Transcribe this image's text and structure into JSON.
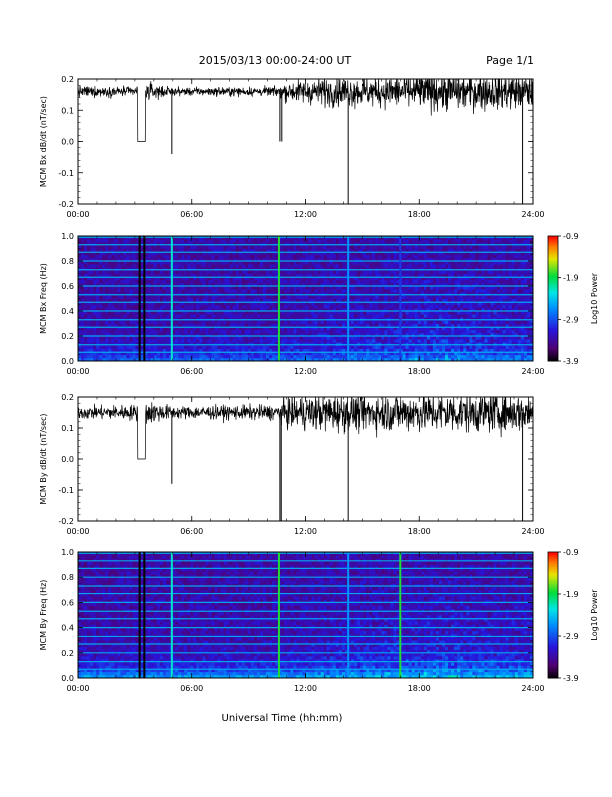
{
  "header": {
    "title": "2015/03/13  00:00-24:00 UT",
    "page": "Page 1/1"
  },
  "footer": {
    "xlabel": "Universal Time (hh:mm)"
  },
  "colorbar": {
    "ticks": [
      "-0.9",
      "-1.9",
      "-2.9",
      "-3.9"
    ],
    "tick_values": [
      -0.9,
      -1.9,
      -2.9,
      -3.9
    ],
    "label": "Log10 Power",
    "range": [
      -3.9,
      -0.9
    ]
  },
  "chart_data": [
    {
      "type": "line",
      "ylabel": "MCM Bx dB/dt (nT/sec)",
      "xlim": [
        0,
        24
      ],
      "ylim": [
        -0.2,
        0.2
      ],
      "xticks": [
        "00:00",
        "06:00",
        "12:00",
        "18:00",
        "24:00"
      ],
      "xtick_values": [
        0,
        6,
        12,
        18,
        24
      ],
      "yticks": [
        "0.2",
        "0.1",
        "0.0",
        "-0.1",
        "-0.2"
      ],
      "ytick_values": [
        0.2,
        0.1,
        0.0,
        -0.1,
        -0.2
      ],
      "baseline": 0.16,
      "noise_profile": [
        [
          0,
          0.035
        ],
        [
          3,
          0.03
        ],
        [
          3.5,
          0.06
        ],
        [
          5,
          0.025
        ],
        [
          10.5,
          0.03
        ],
        [
          11,
          0.06
        ],
        [
          13,
          0.09
        ],
        [
          16,
          0.1
        ],
        [
          19,
          0.12
        ],
        [
          24,
          0.11
        ]
      ],
      "dropouts": [
        [
          3.15,
          3.55,
          0.0
        ]
      ],
      "spikes": [
        [
          4.95,
          -0.04
        ],
        [
          10.65,
          0.0
        ],
        [
          10.75,
          0.0
        ],
        [
          14.25,
          -0.2
        ],
        [
          23.45,
          -0.2
        ]
      ]
    },
    {
      "type": "heatmap",
      "ylabel": "MCM Bx Freq (Hz)",
      "xlim": [
        0,
        24
      ],
      "ylim": [
        0,
        1.0
      ],
      "xticks": [
        "00:00",
        "06:00",
        "12:00",
        "18:00",
        "24:00"
      ],
      "xtick_values": [
        0,
        6,
        12,
        18,
        24
      ],
      "yticks": [
        "1.0",
        "0.8",
        "0.6",
        "0.4",
        "0.2",
        "0.0"
      ],
      "ytick_values": [
        1.0,
        0.8,
        0.6,
        0.4,
        0.2,
        0.0
      ],
      "colorscale": "rainbow",
      "value_range": [
        -3.9,
        -0.9
      ],
      "harmonic_lines_hz": [
        0.07,
        0.13,
        0.2,
        0.27,
        0.33,
        0.4,
        0.47,
        0.53,
        0.6,
        0.67,
        0.73,
        0.8,
        0.87,
        0.93,
        0.99
      ],
      "vertical_events": [
        [
          3.25,
          -3.9
        ],
        [
          3.5,
          -3.9
        ],
        [
          4.95,
          -2.2
        ],
        [
          10.6,
          -1.8
        ],
        [
          14.25,
          -2.6
        ],
        [
          17.0,
          -3.0
        ]
      ],
      "low_freq_power": -3.0
    },
    {
      "type": "line",
      "ylabel": "MCM By dB/dt (nT/sec)",
      "xlim": [
        0,
        24
      ],
      "ylim": [
        -0.2,
        0.2
      ],
      "xticks": [
        "00:00",
        "06:00",
        "12:00",
        "18:00",
        "24:00"
      ],
      "xtick_values": [
        0,
        6,
        12,
        18,
        24
      ],
      "yticks": [
        "0.2",
        "0.1",
        "0.0",
        "-0.1",
        "-0.2"
      ],
      "ytick_values": [
        0.2,
        0.1,
        0.0,
        -0.1,
        -0.2
      ],
      "baseline": 0.15,
      "noise_profile": [
        [
          0,
          0.04
        ],
        [
          3,
          0.05
        ],
        [
          3.6,
          0.08
        ],
        [
          5,
          0.04
        ],
        [
          10.5,
          0.05
        ],
        [
          11,
          0.1
        ],
        [
          13,
          0.12
        ],
        [
          16,
          0.12
        ],
        [
          19,
          0.13
        ],
        [
          24,
          0.12
        ]
      ],
      "dropouts": [
        [
          3.15,
          3.55,
          0.0
        ]
      ],
      "spikes": [
        [
          4.95,
          -0.08
        ],
        [
          10.65,
          -0.2
        ],
        [
          10.72,
          -0.2
        ],
        [
          14.25,
          -0.2
        ],
        [
          23.45,
          -0.2
        ]
      ]
    },
    {
      "type": "heatmap",
      "ylabel": "MCM By Freq (Hz)",
      "xlim": [
        0,
        24
      ],
      "ylim": [
        0,
        1.0
      ],
      "xticks": [
        "00:00",
        "06:00",
        "12:00",
        "18:00",
        "24:00"
      ],
      "xtick_values": [
        0,
        6,
        12,
        18,
        24
      ],
      "yticks": [
        "1.0",
        "0.8",
        "0.6",
        "0.4",
        "0.2",
        "0.0"
      ],
      "ytick_values": [
        1.0,
        0.8,
        0.6,
        0.4,
        0.2,
        0.0
      ],
      "colorscale": "rainbow",
      "value_range": [
        -3.9,
        -0.9
      ],
      "harmonic_lines_hz": [
        0.07,
        0.13,
        0.2,
        0.27,
        0.33,
        0.4,
        0.47,
        0.53,
        0.6,
        0.67,
        0.73,
        0.8,
        0.87,
        0.93,
        0.99
      ],
      "vertical_events": [
        [
          3.25,
          -3.9
        ],
        [
          3.5,
          -3.9
        ],
        [
          4.95,
          -2.2
        ],
        [
          10.6,
          -1.8
        ],
        [
          14.25,
          -2.6
        ],
        [
          17.0,
          -1.8
        ]
      ],
      "low_freq_power": -2.7
    }
  ]
}
